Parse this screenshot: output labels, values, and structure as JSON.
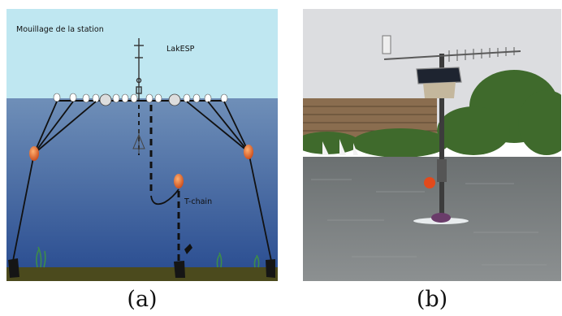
{
  "panel_a": {
    "title": "Mouillage de la station",
    "station_label": "LakESP",
    "chain_label": "T-chain",
    "caption": "(a)",
    "colors": {
      "sky": "#bfe7f1",
      "water_top": "#6f8fb8",
      "water_bottom": "#2f5394",
      "lake_bed": "#4b4a1d",
      "marker_buoy": "#e0632a",
      "float": "#ffffff"
    }
  },
  "panel_b": {
    "caption": "(b)",
    "colors": {
      "sky": "#dcdde0",
      "lake": "#7f8384",
      "trees": "#3f6a2c",
      "building": "#8a6d4f",
      "buoy": "#e24a1c"
    }
  }
}
